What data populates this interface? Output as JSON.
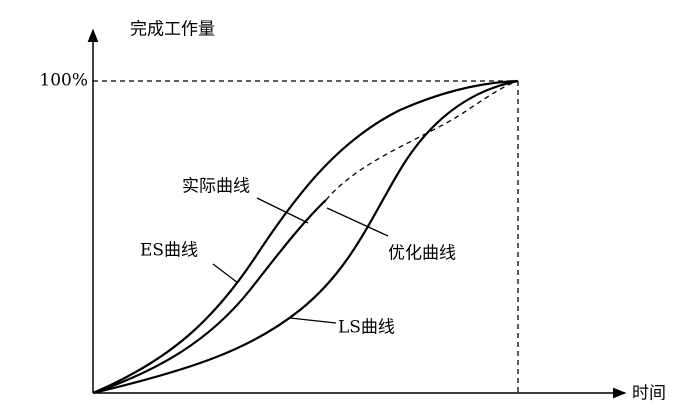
{
  "axes": {
    "y_label": "完成工作量",
    "x_label": "时间",
    "y_max_label": "100%"
  },
  "curves": {
    "es": "ES曲线",
    "ls": "LS曲线",
    "actual": "实际曲线",
    "optimized": "优化曲线"
  }
}
